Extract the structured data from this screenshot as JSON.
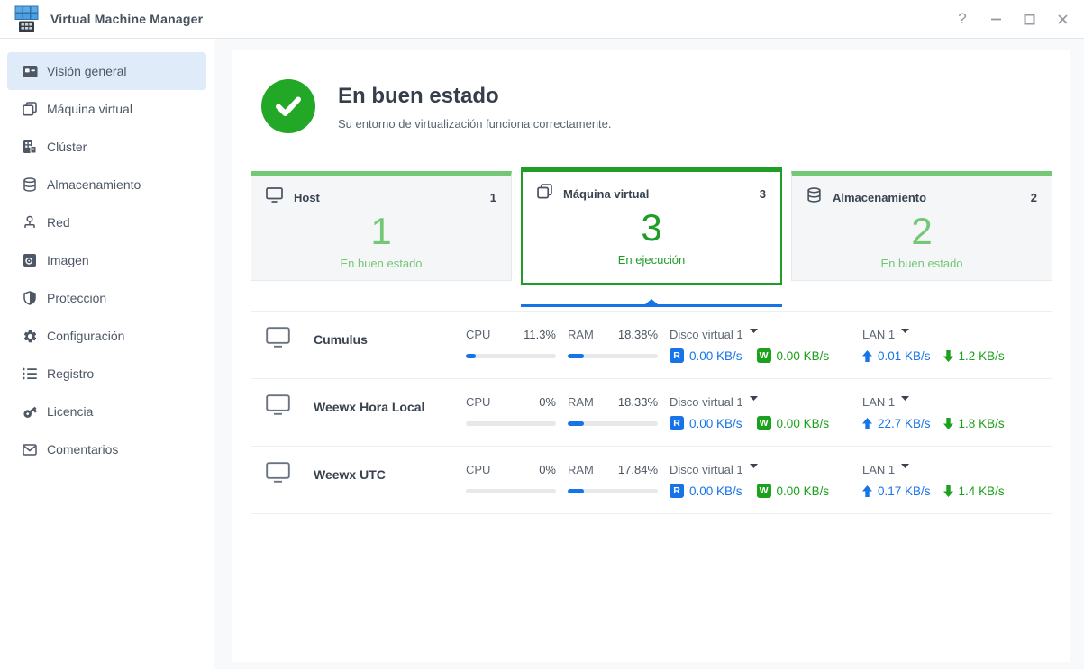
{
  "titlebar": {
    "app_title": "Virtual Machine Manager",
    "help_glyph": "?"
  },
  "sidebar": {
    "items": [
      {
        "id": "vision-general",
        "label": "Visión general",
        "active": true
      },
      {
        "id": "maquina-virtual",
        "label": "Máquina virtual",
        "active": false
      },
      {
        "id": "cluster",
        "label": "Clúster",
        "active": false
      },
      {
        "id": "almacenamiento",
        "label": "Almacenamiento",
        "active": false
      },
      {
        "id": "red",
        "label": "Red",
        "active": false
      },
      {
        "id": "imagen",
        "label": "Imagen",
        "active": false
      },
      {
        "id": "proteccion",
        "label": "Protección",
        "active": false
      },
      {
        "id": "configuracion",
        "label": "Configuración",
        "active": false
      },
      {
        "id": "registro",
        "label": "Registro",
        "active": false
      },
      {
        "id": "licencia",
        "label": "Licencia",
        "active": false
      },
      {
        "id": "comentarios",
        "label": "Comentarios",
        "active": false
      }
    ]
  },
  "overview": {
    "status": {
      "title": "En buen estado",
      "subtitle": "Su entorno de virtualización funciona correctamente."
    },
    "cards": [
      {
        "title": "Host",
        "count": "1",
        "value": "1",
        "status": "En buen estado",
        "highlighted": false
      },
      {
        "title": "Máquina virtual",
        "count": "3",
        "value": "3",
        "status": "En ejecución",
        "highlighted": true
      },
      {
        "title": "Almacenamiento",
        "count": "2",
        "value": "2",
        "status": "En buen estado",
        "highlighted": false
      }
    ],
    "labels": {
      "cpu": "CPU",
      "ram": "RAM",
      "disk": "Disco virtual 1",
      "lan": "LAN 1",
      "read_badge": "R",
      "write_badge": "W"
    },
    "vms": [
      {
        "name": "Cumulus",
        "cpu": "11.3%",
        "cpu_pct": 11.3,
        "ram": "18.38%",
        "ram_pct": 18.38,
        "disk_read": "0.00 KB/s",
        "disk_write": "0.00 KB/s",
        "lan_up": "0.01 KB/s",
        "lan_down": "1.2 KB/s"
      },
      {
        "name": "Weewx Hora Local",
        "cpu": "0%",
        "cpu_pct": 0,
        "ram": "18.33%",
        "ram_pct": 18.33,
        "disk_read": "0.00 KB/s",
        "disk_write": "0.00 KB/s",
        "lan_up": "22.7 KB/s",
        "lan_down": "1.8 KB/s"
      },
      {
        "name": "Weewx UTC",
        "cpu": "0%",
        "cpu_pct": 0,
        "ram": "17.84%",
        "ram_pct": 17.84,
        "disk_read": "0.00 KB/s",
        "disk_write": "0.00 KB/s",
        "lan_up": "0.17 KB/s",
        "lan_down": "1.4 KB/s"
      }
    ]
  },
  "colors": {
    "accent_blue": "#1774e8",
    "active_green": "#1f9d27",
    "light_green": "#74c774",
    "status_ok_green": "#23a727",
    "read_badge_blue": "#1774e8",
    "write_badge_green": "#1ba11b"
  }
}
